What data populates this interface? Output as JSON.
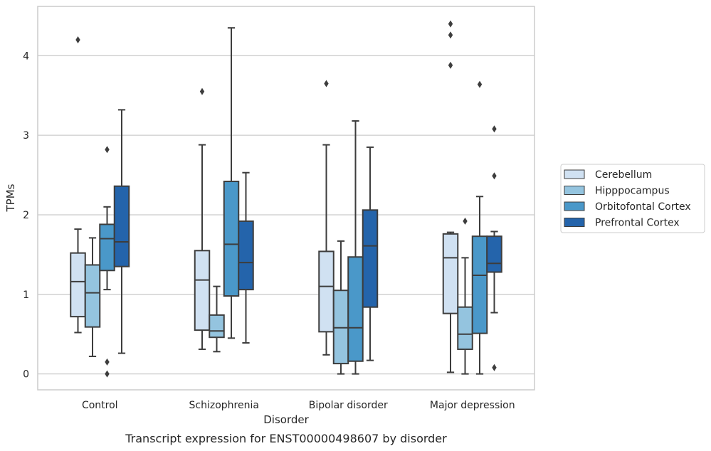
{
  "chart_data": {
    "type": "box",
    "caption": "Transcript expression for ENST00000498607 by disorder",
    "xlabel": "Disorder",
    "ylabel": "TPMs",
    "ylim": [
      -0.2,
      4.62
    ],
    "yticks": [
      0,
      1,
      2,
      3,
      4
    ],
    "grid": "horizontal",
    "legend_position": "right",
    "categories": [
      "Control",
      "Schizophrenia",
      "Bipolar disorder",
      "Major depression"
    ],
    "series": [
      {
        "name": "Cerebellum",
        "color": "#d0e1f2",
        "boxes": [
          {
            "whislo": 0.52,
            "q1": 0.72,
            "med": 1.16,
            "q3": 1.52,
            "whishi": 1.82,
            "fliers": [
              4.2
            ]
          },
          {
            "whislo": 0.31,
            "q1": 0.55,
            "med": 1.18,
            "q3": 1.55,
            "whishi": 2.88,
            "fliers": [
              3.55
            ]
          },
          {
            "whislo": 0.24,
            "q1": 0.53,
            "med": 1.1,
            "q3": 1.54,
            "whishi": 2.88,
            "fliers": [
              3.65
            ]
          },
          {
            "whislo": 0.02,
            "q1": 0.76,
            "med": 1.46,
            "q3": 1.76,
            "whishi": 1.78,
            "fliers": [
              3.88,
              4.26,
              4.4
            ]
          }
        ]
      },
      {
        "name": "Hipppocampus",
        "color": "#94c4df",
        "boxes": [
          {
            "whislo": 0.22,
            "q1": 0.59,
            "med": 1.02,
            "q3": 1.37,
            "whishi": 1.71,
            "fliers": []
          },
          {
            "whislo": 0.28,
            "q1": 0.46,
            "med": 0.54,
            "q3": 0.74,
            "whishi": 1.1,
            "fliers": []
          },
          {
            "whislo": 0.0,
            "q1": 0.13,
            "med": 0.58,
            "q3": 1.05,
            "whishi": 1.67,
            "fliers": []
          },
          {
            "whislo": 0.0,
            "q1": 0.31,
            "med": 0.5,
            "q3": 0.84,
            "whishi": 1.46,
            "fliers": [
              1.92
            ]
          }
        ]
      },
      {
        "name": "Orbitofontal Cortex",
        "color": "#4a98c9",
        "boxes": [
          {
            "whislo": 1.06,
            "q1": 1.3,
            "med": 1.7,
            "q3": 1.88,
            "whishi": 2.1,
            "fliers": [
              2.82,
              0.15,
              0.0
            ]
          },
          {
            "whislo": 0.45,
            "q1": 0.98,
            "med": 1.63,
            "q3": 2.42,
            "whishi": 4.35,
            "fliers": []
          },
          {
            "whislo": 0.0,
            "q1": 0.16,
            "med": 0.58,
            "q3": 1.47,
            "whishi": 3.18,
            "fliers": []
          },
          {
            "whislo": 0.0,
            "q1": 0.51,
            "med": 1.24,
            "q3": 1.73,
            "whishi": 2.23,
            "fliers": [
              3.64
            ]
          }
        ]
      },
      {
        "name": "Prefrontal Cortex",
        "color": "#2464ab",
        "boxes": [
          {
            "whislo": 0.26,
            "q1": 1.35,
            "med": 1.66,
            "q3": 2.36,
            "whishi": 3.32,
            "fliers": []
          },
          {
            "whislo": 0.39,
            "q1": 1.06,
            "med": 1.4,
            "q3": 1.92,
            "whishi": 2.53,
            "fliers": []
          },
          {
            "whislo": 0.17,
            "q1": 0.84,
            "med": 1.61,
            "q3": 2.06,
            "whishi": 2.85,
            "fliers": []
          },
          {
            "whislo": 0.77,
            "q1": 1.28,
            "med": 1.39,
            "q3": 1.73,
            "whishi": 1.79,
            "fliers": [
              3.08,
              2.49,
              0.08
            ]
          }
        ]
      }
    ]
  }
}
